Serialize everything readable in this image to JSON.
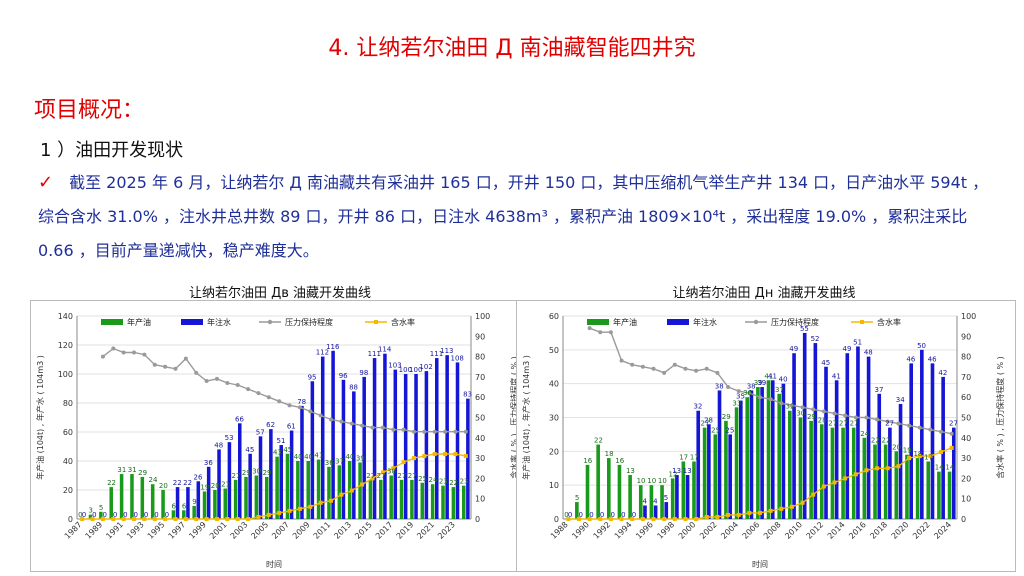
{
  "slide": {
    "title": "4. 让纳若尔油田 Д 南油藏智能四井究",
    "subtitle": "项目概况：",
    "section": "1 ）油田开发现状",
    "check_icon": "check-icon",
    "paragraph": "截至 2025 年 6 月，让纳若尔 Д 南油藏共有采油井 165 口，开井 150 口，其中压缩机气举生产井 134 口，日产油水平 594t ，综合含水 31.0% ，注水井总井数 89 口，开井 86 口，日注水 4638m³ ，累积产油 1809×10⁴t ，采出程度 19.0% ，累积注采比 0.66 ，目前产量递减快，稳产难度大。"
  },
  "chart_data": [
    {
      "type": "bar",
      "title": "让纳若尔油田 Дв 油藏开发曲线",
      "xlabel": "时间",
      "ylabel_left": "年产油 (104t) , 年产水 ( 104m3 )",
      "ylabel_right": "含水率 ( % ) , 压力保持程度 ( % )",
      "ylim_left": [
        0,
        140
      ],
      "ylim_right": [
        0,
        100
      ],
      "yticks_left": [
        0,
        20,
        40,
        60,
        80,
        100,
        120,
        140
      ],
      "yticks_right": [
        0,
        10,
        20,
        30,
        40,
        50,
        60,
        70,
        80,
        90,
        100
      ],
      "x": [
        "1987",
        "1988",
        "1989",
        "1990",
        "1991",
        "1992",
        "1993",
        "1994",
        "1995",
        "1996",
        "1997",
        "1998",
        "1999",
        "2000",
        "2001",
        "2002",
        "2003",
        "2004",
        "2005",
        "2006",
        "2007",
        "2008",
        "2009",
        "2010",
        "2011",
        "2012",
        "2013",
        "2014",
        "2015",
        "2016",
        "2017",
        "2018",
        "2019",
        "2020",
        "2021",
        "2022",
        "2023",
        "2024"
      ],
      "xtick_labels": [
        "1987",
        "1989",
        "1991",
        "1993",
        "1995",
        "1997",
        "1999",
        "2001",
        "2003",
        "2005",
        "2007",
        "2009",
        "2011",
        "2013",
        "2015",
        "2017",
        "2019",
        "2021",
        "2023"
      ],
      "legend": [
        "年产油",
        "年注水",
        "压力保持程度",
        "含水率"
      ],
      "colors": {
        "oil": "#1a9a1a",
        "water": "#1515d6",
        "pressure": "#9a9a9a",
        "watercut": "#f5b800"
      },
      "series": [
        {
          "name": "年产油",
          "axis": "left",
          "values": [
            0,
            3,
            5,
            22,
            31,
            31,
            29,
            24,
            20,
            6,
            6,
            9,
            19,
            20,
            21,
            27,
            29,
            30,
            29,
            43,
            45,
            40,
            40,
            41,
            36,
            37,
            40,
            39,
            27,
            27,
            30,
            27,
            27,
            25,
            24,
            23,
            22,
            23
          ]
        },
        {
          "name": "年注水",
          "axis": "left",
          "values": [
            0,
            0,
            0,
            0,
            0,
            0,
            0,
            0,
            0,
            22,
            22,
            26,
            36,
            48,
            53,
            66,
            45,
            57,
            62,
            51,
            61,
            78,
            95,
            112,
            116,
            96,
            88,
            98,
            111,
            114,
            103,
            100,
            100,
            102,
            111,
            113,
            108,
            83
          ]
        },
        {
          "name": "压力保持程度",
          "axis": "right",
          "values": [
            null,
            null,
            80,
            84,
            82,
            82,
            81,
            76,
            75,
            74,
            79,
            72,
            68,
            69,
            67,
            66,
            64,
            62,
            60,
            58,
            56,
            55,
            53,
            51,
            49,
            48,
            47,
            46,
            45,
            45,
            44,
            44,
            43,
            43,
            43,
            43,
            43,
            43
          ]
        },
        {
          "name": "含水率",
          "axis": "right",
          "values": [
            0,
            0,
            0,
            0,
            0,
            0,
            0,
            0,
            0,
            0,
            0,
            0,
            0,
            0,
            0,
            0,
            0,
            1,
            2,
            3,
            4,
            5,
            6,
            8,
            9,
            12,
            14,
            17,
            20,
            23,
            25,
            28,
            30,
            31,
            32,
            32,
            32,
            31
          ]
        }
      ],
      "bar_labels_oil": [
        "0",
        "3",
        "5",
        "22",
        "31",
        "31",
        "29",
        "24",
        "20",
        "6",
        "6",
        "9",
        "19",
        "20",
        "21",
        "27",
        "29",
        "30",
        "29",
        "43",
        "45",
        "40",
        "40",
        "41",
        "36",
        "37",
        "40",
        "39",
        "27",
        "27",
        "30",
        "27",
        "27",
        "25",
        "24",
        "23",
        "22",
        "23"
      ],
      "bar_labels_water": [
        "0",
        "0",
        "0",
        "0",
        "0",
        "0",
        "0",
        "0",
        "0",
        "22",
        "22",
        "26",
        "36",
        "48",
        "53",
        "66",
        "45",
        "57",
        "62",
        "51",
        "61",
        "78",
        "95",
        "112",
        "116",
        "96",
        "88",
        "98",
        "111",
        "114",
        "103",
        "100",
        "100",
        "102",
        "111",
        "113",
        "108",
        "83"
      ]
    },
    {
      "type": "bar",
      "title": "让纳若尔油田 Дн 油藏开发曲线",
      "xlabel": "时间",
      "ylabel_left": "年产油 (104t) , 年产水 ( 104m3 )",
      "ylabel_right": "含水率 ( % ) , 压力保持程度 ( % )",
      "ylim_left": [
        0,
        60
      ],
      "ylim_right": [
        0,
        100
      ],
      "yticks_left": [
        0,
        10,
        20,
        30,
        40,
        50,
        60
      ],
      "yticks_right": [
        0,
        10,
        20,
        30,
        40,
        50,
        60,
        70,
        80,
        90,
        100
      ],
      "x": [
        "1988",
        "1989",
        "1990",
        "1991",
        "1992",
        "1993",
        "1994",
        "1995",
        "1996",
        "1997",
        "1998",
        "1999",
        "2000",
        "2001",
        "2002",
        "2003",
        "2004",
        "2005",
        "2006",
        "2007",
        "2008",
        "2009",
        "2010",
        "2011",
        "2012",
        "2013",
        "2014",
        "2015",
        "2016",
        "2017",
        "2018",
        "2019",
        "2020",
        "2021",
        "2022",
        "2023",
        "2024"
      ],
      "xtick_labels": [
        "1988",
        "1990",
        "1992",
        "1994",
        "1996",
        "1998",
        "2000",
        "2002",
        "2004",
        "2006",
        "2008",
        "2010",
        "2012",
        "2014",
        "2016",
        "2018",
        "2020",
        "2022",
        "2024"
      ],
      "legend": [
        "年产油",
        "年注水",
        "压力保持程度",
        "含水率"
      ],
      "colors": {
        "oil": "#1a9a1a",
        "water": "#1515d6",
        "pressure": "#9a9a9a",
        "watercut": "#f5b800"
      },
      "series": [
        {
          "name": "年产油",
          "axis": "left",
          "values": [
            0,
            5,
            16,
            22,
            18,
            16,
            13,
            10,
            10,
            10,
            12,
            17,
            17,
            27,
            25,
            29,
            33,
            36,
            39,
            41,
            37,
            32,
            30,
            29,
            28,
            27,
            27,
            27,
            24,
            22,
            22,
            20,
            19,
            18,
            17,
            14,
            14
          ]
        },
        {
          "name": "年注水",
          "axis": "left",
          "values": [
            0,
            0,
            0,
            0,
            0,
            0,
            0,
            4,
            4,
            5,
            13,
            13,
            32,
            28,
            38,
            25,
            35,
            38,
            39,
            41,
            40,
            49,
            55,
            52,
            45,
            41,
            49,
            51,
            48,
            37,
            27,
            34,
            46,
            50,
            46,
            42,
            27
          ]
        },
        {
          "name": "压力保持程度",
          "axis": "right",
          "values": [
            null,
            null,
            94,
            92,
            92,
            78,
            76,
            75,
            74,
            72,
            76,
            74,
            73,
            74,
            72,
            65,
            63,
            62,
            60,
            59,
            57,
            56,
            55,
            54,
            53,
            52,
            51,
            50,
            50,
            49,
            48,
            47,
            46,
            45,
            44,
            43,
            42
          ]
        },
        {
          "name": "含水率",
          "axis": "right",
          "values": [
            0,
            0,
            0,
            0,
            0,
            0,
            0,
            0,
            0,
            0,
            0,
            0,
            0,
            1,
            1,
            2,
            2,
            3,
            3,
            4,
            5,
            6,
            8,
            12,
            16,
            18,
            20,
            22,
            24,
            25,
            25,
            26,
            30,
            31,
            31,
            33,
            35
          ]
        }
      ],
      "bar_labels_oil": [
        "0",
        "5",
        "16",
        "22",
        "18",
        "16",
        "13",
        "10",
        "10",
        "10",
        "12",
        "17",
        "17",
        "27",
        "25",
        "29",
        "33",
        "36",
        "39",
        "41",
        "37",
        "32",
        "30",
        "29",
        "28",
        "27",
        "27",
        "27",
        "24",
        "22",
        "22",
        "20",
        "19",
        "18",
        "17",
        "14",
        "14"
      ],
      "bar_labels_water": [
        "0",
        "0",
        "0",
        "0",
        "0",
        "0",
        "0",
        "4",
        "4",
        "5",
        "13",
        "13",
        "32",
        "28",
        "38",
        "25",
        "35",
        "38",
        "39",
        "41",
        "40",
        "49",
        "55",
        "52",
        "45",
        "41",
        "49",
        "51",
        "48",
        "37",
        "27",
        "34",
        "46",
        "50",
        "46",
        "42",
        "27"
      ]
    }
  ]
}
